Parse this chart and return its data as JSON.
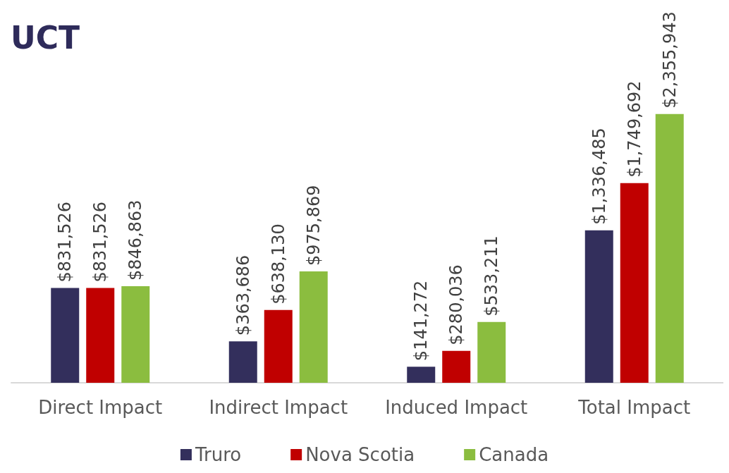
{
  "chart_data": {
    "type": "bar",
    "title": "UCT",
    "categories": [
      "Direct Impact",
      "Indirect Impact",
      "Induced Impact",
      "Total Impact"
    ],
    "series": [
      {
        "name": "Truro",
        "color": "#332f5c",
        "values": [
          831526,
          363686,
          141272,
          1336485
        ],
        "value_labels": [
          "$831,526",
          "$363,686",
          "$141,272",
          "$1,336,485"
        ]
      },
      {
        "name": "Nova Scotia",
        "color": "#c00000",
        "values": [
          831526,
          638130,
          280036,
          1749692
        ],
        "value_labels": [
          "$831,526",
          "$638,130",
          "$280,036",
          "$1,749,692"
        ]
      },
      {
        "name": "Canada",
        "color": "#8bbd3f",
        "values": [
          846863,
          975869,
          533211,
          2355943
        ],
        "value_labels": [
          "$846,863",
          "$975,869",
          "$533,211",
          "$2,355,943"
        ]
      }
    ],
    "legend": "bottom"
  }
}
